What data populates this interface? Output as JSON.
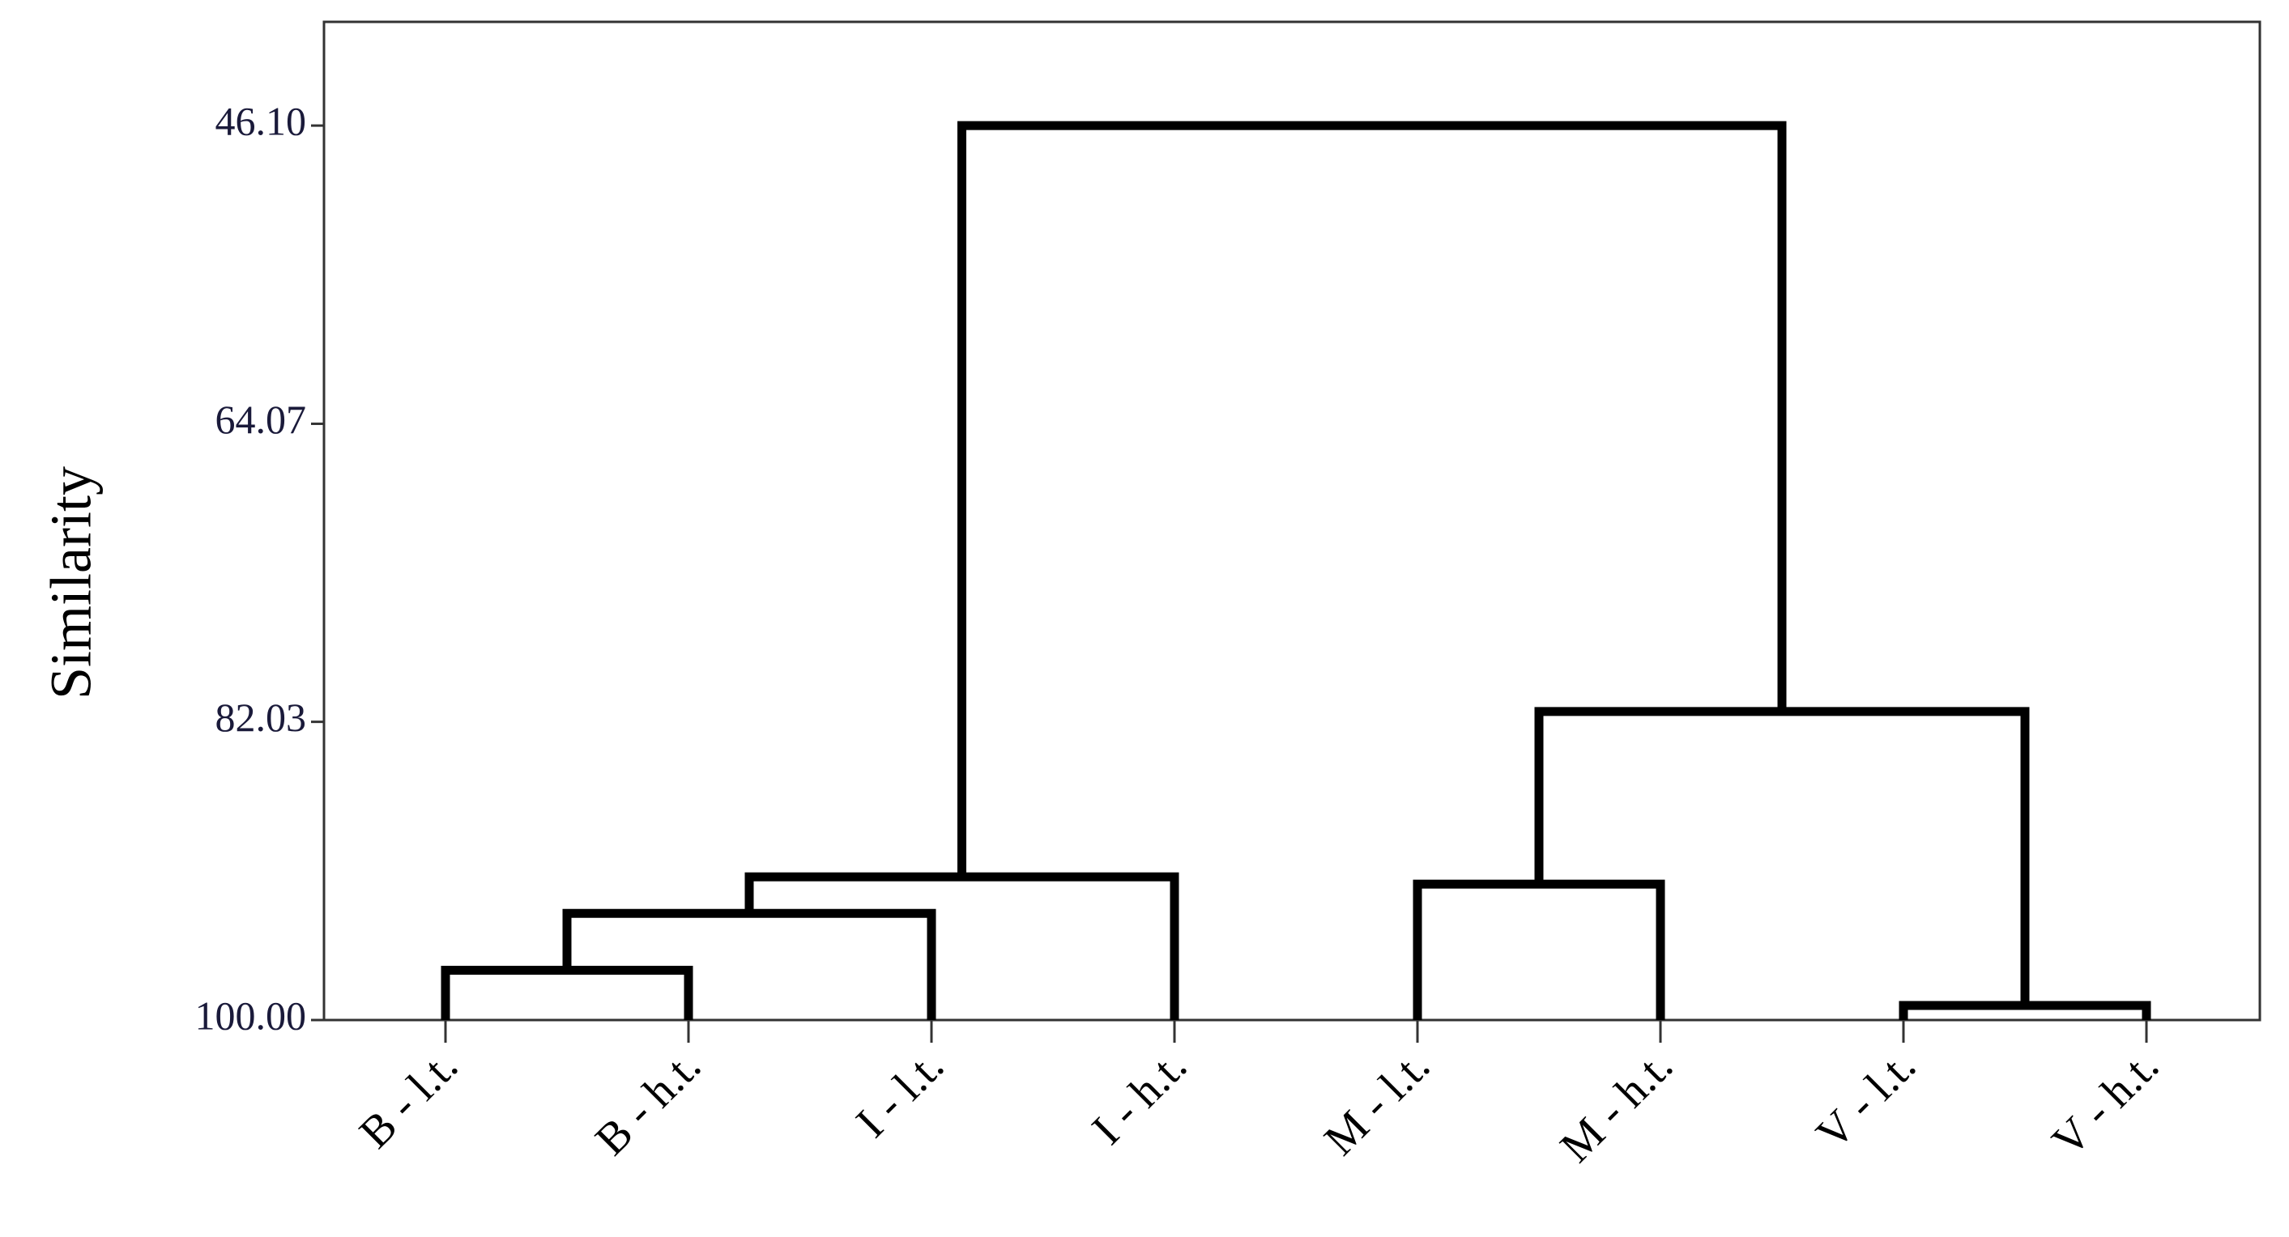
{
  "chart_data": {
    "type": "dendrogram",
    "y_label": "Similarity",
    "leaves": [
      "B - l.t.",
      "B - h.t.",
      "I - l.t.",
      "I - h.t.",
      "M - l.t.",
      "M - h.t.",
      "V - l.t.",
      "V - h.t."
    ],
    "merges": [
      {
        "left": 0,
        "right": 1,
        "height": 97.0
      },
      {
        "left": 8,
        "right": 2,
        "height": 93.57
      },
      {
        "left": 9,
        "right": 3,
        "height": 91.37
      },
      {
        "left": 4,
        "right": 5,
        "height": 91.81
      },
      {
        "left": 6,
        "right": 7,
        "height": 99.12
      },
      {
        "left": 11,
        "right": 12,
        "height": 81.41
      },
      {
        "left": 10,
        "right": 13,
        "height": 46.1
      }
    ],
    "color": "#000000",
    "ylim": [
      100,
      39.85
    ],
    "yticks": [
      {
        "value": 46.1,
        "label": "46.10"
      },
      64.07,
      82.03,
      {
        "value": 100,
        "label": "100.00"
      }
    ]
  }
}
